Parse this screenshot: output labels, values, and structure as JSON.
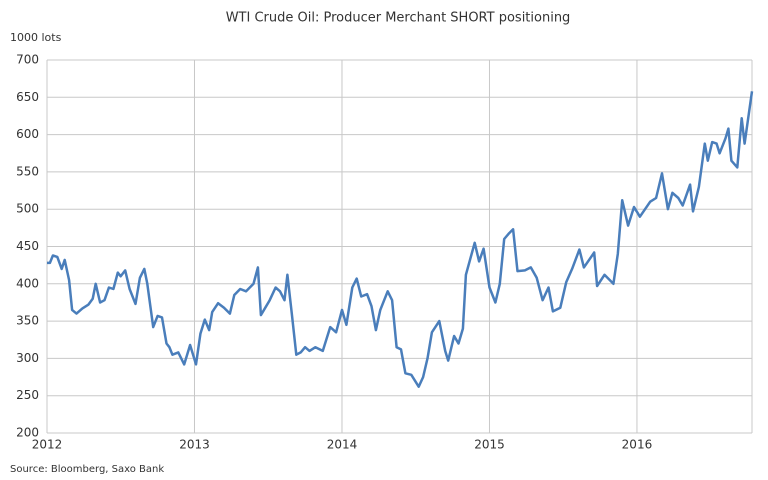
{
  "chart_data": {
    "type": "line",
    "title": "WTI Crude Oil: Producer Merchant SHORT positioning",
    "y_label": "1000 lots",
    "source": "Source: Bloomberg, Saxo Bank",
    "xlim": [
      2012,
      2016.78
    ],
    "xticks": [
      2012,
      2013,
      2014,
      2015,
      2016
    ],
    "ylim": [
      200,
      700
    ],
    "yticks": [
      200,
      250,
      300,
      350,
      400,
      450,
      500,
      550,
      600,
      650,
      700
    ],
    "grid": true,
    "series": [
      {
        "name": "Producer Merchant SHORT",
        "color": "#4a7ebb",
        "x": [
          2012.0,
          2012.02,
          2012.04,
          2012.07,
          2012.1,
          2012.12,
          2012.15,
          2012.17,
          2012.2,
          2012.24,
          2012.28,
          2012.31,
          2012.33,
          2012.36,
          2012.39,
          2012.42,
          2012.45,
          2012.48,
          2012.5,
          2012.53,
          2012.56,
          2012.6,
          2012.63,
          2012.66,
          2012.68,
          2012.72,
          2012.75,
          2012.78,
          2012.81,
          2012.83,
          2012.85,
          2012.89,
          2012.93,
          2012.97,
          2013.01,
          2013.04,
          2013.07,
          2013.1,
          2013.12,
          2013.16,
          2013.2,
          2013.24,
          2013.27,
          2013.31,
          2013.35,
          2013.4,
          2013.43,
          2013.45,
          2013.48,
          2013.51,
          2013.55,
          2013.58,
          2013.61,
          2013.63,
          2013.66,
          2013.69,
          2013.72,
          2013.75,
          2013.78,
          2013.82,
          2013.87,
          2013.92,
          2013.96,
          2014.0,
          2014.03,
          2014.07,
          2014.1,
          2014.13,
          2014.17,
          2014.2,
          2014.23,
          2014.26,
          2014.31,
          2014.34,
          2014.37,
          2014.4,
          2014.43,
          2014.47,
          2014.52,
          2014.55,
          2014.58,
          2014.61,
          2014.66,
          2014.7,
          2014.72,
          2014.76,
          2014.79,
          2014.82,
          2014.84,
          2014.9,
          2014.93,
          2014.96,
          2015.0,
          2015.04,
          2015.07,
          2015.1,
          2015.13,
          2015.16,
          2015.19,
          2015.24,
          2015.28,
          2015.32,
          2015.36,
          2015.4,
          2015.43,
          2015.48,
          2015.52,
          2015.56,
          2015.61,
          2015.64,
          2015.71,
          2015.73,
          2015.78,
          2015.84,
          2015.87,
          2015.9,
          2015.94,
          2015.98,
          2016.02,
          2016.09,
          2016.13,
          2016.17,
          2016.21,
          2016.24,
          2016.28,
          2016.31,
          2016.36,
          2016.38,
          2016.42,
          2016.46,
          2016.48,
          2016.51,
          2016.54,
          2016.56,
          2016.6,
          2016.62,
          2016.64,
          2016.68,
          2016.71,
          2016.73,
          2016.78
        ],
        "values": [
          428,
          428,
          438,
          436,
          420,
          432,
          405,
          365,
          360,
          367,
          372,
          380,
          400,
          375,
          378,
          395,
          393,
          415,
          410,
          418,
          393,
          373,
          408,
          420,
          400,
          342,
          357,
          355,
          320,
          315,
          305,
          308,
          292,
          318,
          292,
          333,
          352,
          338,
          362,
          374,
          368,
          360,
          385,
          393,
          390,
          400,
          422,
          358,
          368,
          378,
          395,
          390,
          378,
          412,
          360,
          305,
          308,
          315,
          310,
          315,
          310,
          342,
          335,
          365,
          345,
          395,
          407,
          383,
          386,
          370,
          338,
          365,
          390,
          378,
          315,
          312,
          280,
          278,
          262,
          275,
          300,
          335,
          350,
          310,
          297,
          330,
          320,
          340,
          412,
          455,
          430,
          447,
          395,
          375,
          400,
          460,
          467,
          473,
          417,
          418,
          422,
          408,
          378,
          395,
          363,
          368,
          402,
          420,
          446,
          422,
          442,
          397,
          412,
          400,
          440,
          512,
          478,
          503,
          490,
          510,
          515,
          548,
          500,
          522,
          515,
          505,
          533,
          497,
          530,
          588,
          565,
          590,
          588,
          575,
          595,
          608,
          565,
          556,
          622,
          588,
          658
        ]
      }
    ]
  }
}
